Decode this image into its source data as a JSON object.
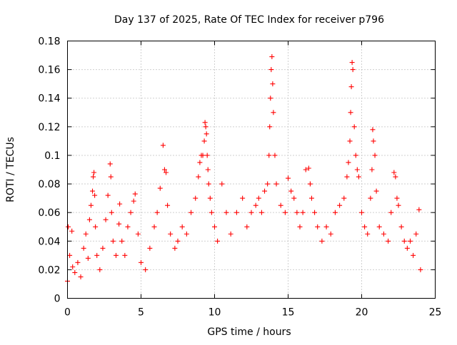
{
  "chart_data": {
    "type": "scatter",
    "title": "Day 137 of 2025, Rate Of TEC Index for receiver p796",
    "xlabel": "GPS time / hours",
    "ylabel": "ROTI / TECUs",
    "xlim": [
      0,
      25
    ],
    "ylim": [
      0,
      0.18
    ],
    "xticks": [
      0,
      5,
      10,
      15,
      20,
      25
    ],
    "xtick_labels": [
      "0",
      "5",
      "10",
      "15",
      "20",
      "25"
    ],
    "yticks": [
      0,
      0.02,
      0.04,
      0.06,
      0.08,
      0.1,
      0.12,
      0.14,
      0.16,
      0.18
    ],
    "ytick_labels": [
      "0",
      "0.02",
      "0.04",
      "0.06",
      "0.08",
      "0.1",
      "0.12",
      "0.14",
      "0.16",
      "0.18"
    ],
    "grid": true,
    "marker": "+",
    "series": [
      {
        "name": "ROTI",
        "color": "#ff0000",
        "x": [
          0.0,
          0.05,
          0.15,
          0.3,
          0.35,
          0.5,
          0.7,
          0.9,
          1.1,
          1.25,
          1.4,
          1.5,
          1.6,
          1.7,
          1.75,
          1.8,
          1.85,
          1.9,
          2.0,
          2.2,
          2.4,
          2.6,
          2.75,
          2.9,
          2.95,
          3.0,
          3.1,
          3.3,
          3.5,
          3.55,
          3.7,
          3.9,
          4.1,
          4.3,
          4.5,
          4.6,
          4.8,
          5.0,
          5.3,
          5.6,
          5.9,
          6.1,
          6.3,
          6.5,
          6.6,
          6.7,
          6.8,
          7.0,
          7.3,
          7.5,
          7.8,
          8.1,
          8.4,
          8.7,
          8.9,
          9.0,
          9.1,
          9.2,
          9.3,
          9.35,
          9.4,
          9.45,
          9.5,
          9.55,
          9.6,
          9.7,
          9.8,
          10.0,
          10.2,
          10.5,
          10.8,
          11.1,
          11.5,
          11.9,
          12.2,
          12.5,
          12.8,
          13.0,
          13.2,
          13.4,
          13.6,
          13.7,
          13.75,
          13.8,
          13.85,
          13.9,
          13.95,
          14.0,
          14.1,
          14.2,
          14.5,
          14.8,
          15.0,
          15.2,
          15.4,
          15.6,
          15.8,
          16.0,
          16.2,
          16.4,
          16.5,
          16.6,
          16.8,
          17.0,
          17.3,
          17.6,
          17.9,
          18.2,
          18.5,
          18.8,
          19.0,
          19.1,
          19.2,
          19.25,
          19.3,
          19.35,
          19.4,
          19.5,
          19.6,
          19.7,
          19.8,
          20.0,
          20.2,
          20.4,
          20.6,
          20.7,
          20.75,
          20.8,
          20.9,
          21.0,
          21.2,
          21.5,
          21.8,
          22.0,
          22.2,
          22.3,
          22.4,
          22.5,
          22.7,
          22.9,
          23.1,
          23.3,
          23.5,
          23.7,
          23.9,
          24.0
        ],
        "y": [
          0.012,
          0.05,
          0.03,
          0.047,
          0.022,
          0.018,
          0.025,
          0.015,
          0.035,
          0.045,
          0.028,
          0.055,
          0.065,
          0.075,
          0.085,
          0.088,
          0.072,
          0.05,
          0.03,
          0.02,
          0.035,
          0.055,
          0.072,
          0.094,
          0.085,
          0.06,
          0.04,
          0.03,
          0.052,
          0.066,
          0.04,
          0.03,
          0.05,
          0.06,
          0.068,
          0.073,
          0.045,
          0.025,
          0.02,
          0.035,
          0.05,
          0.06,
          0.077,
          0.107,
          0.09,
          0.088,
          0.065,
          0.045,
          0.035,
          0.04,
          0.05,
          0.045,
          0.06,
          0.07,
          0.085,
          0.095,
          0.1,
          0.1,
          0.11,
          0.123,
          0.12,
          0.115,
          0.1,
          0.09,
          0.08,
          0.07,
          0.06,
          0.05,
          0.04,
          0.08,
          0.06,
          0.045,
          0.06,
          0.07,
          0.05,
          0.06,
          0.065,
          0.07,
          0.06,
          0.075,
          0.08,
          0.1,
          0.12,
          0.14,
          0.16,
          0.169,
          0.15,
          0.13,
          0.1,
          0.08,
          0.065,
          0.06,
          0.084,
          0.075,
          0.07,
          0.06,
          0.05,
          0.06,
          0.09,
          0.091,
          0.08,
          0.07,
          0.06,
          0.05,
          0.04,
          0.05,
          0.045,
          0.06,
          0.065,
          0.07,
          0.085,
          0.095,
          0.11,
          0.13,
          0.148,
          0.165,
          0.16,
          0.12,
          0.1,
          0.09,
          0.085,
          0.06,
          0.05,
          0.045,
          0.07,
          0.09,
          0.118,
          0.11,
          0.1,
          0.075,
          0.05,
          0.045,
          0.04,
          0.06,
          0.088,
          0.085,
          0.07,
          0.065,
          0.05,
          0.04,
          0.035,
          0.04,
          0.03,
          0.045,
          0.062,
          0.02
        ]
      }
    ]
  }
}
